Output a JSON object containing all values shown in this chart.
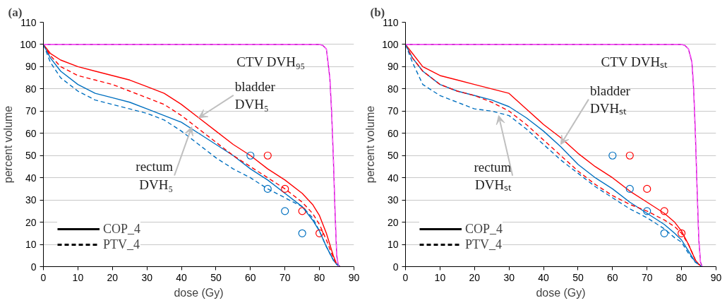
{
  "chart_data": [
    {
      "type": "line",
      "title": "(a)",
      "xlabel": "dose (Gy)",
      "ylabel": "percent volume",
      "x": [
        0,
        2,
        5,
        10,
        15,
        20,
        25,
        30,
        35,
        40,
        45,
        50,
        55,
        60,
        65,
        70,
        75,
        78,
        80,
        82,
        84,
        85,
        86
      ],
      "xlim": [
        0,
        90
      ],
      "xticks": [
        0,
        10,
        20,
        30,
        40,
        50,
        60,
        70,
        80,
        90
      ],
      "ylim": [
        0,
        110
      ],
      "yticks": [
        0,
        10,
        20,
        30,
        40,
        50,
        60,
        70,
        80,
        90,
        100,
        110
      ],
      "grid": "y",
      "legend": "bottom left",
      "series": [
        {
          "color": "#ff0000",
          "line_style": "solid",
          "values": [
            100,
            96,
            93,
            90,
            88,
            86,
            84,
            81,
            78,
            73,
            67,
            61,
            55,
            50,
            44,
            39,
            33,
            28,
            23,
            15,
            5,
            1,
            0
          ]
        },
        {
          "color": "#ff0000",
          "line_style": "dashed",
          "values": [
            100,
            95,
            90,
            86,
            84,
            82,
            79,
            76,
            73,
            68,
            62,
            56,
            50,
            45,
            40,
            35,
            29,
            24,
            19,
            12,
            4,
            1,
            0
          ]
        },
        {
          "color": "#0070c0",
          "line_style": "solid",
          "values": [
            100,
            94,
            88,
            82,
            78,
            76,
            74,
            71,
            68,
            65,
            60,
            55,
            50,
            44,
            39,
            33,
            27,
            21,
            16,
            9,
            3,
            1,
            0
          ]
        },
        {
          "color": "#0070c0",
          "line_style": "dashed",
          "values": [
            100,
            92,
            85,
            79,
            75,
            73,
            71,
            69,
            66,
            61,
            55,
            49,
            44,
            40,
            35,
            31,
            27,
            22,
            16,
            9,
            3,
            1,
            0
          ]
        },
        {
          "color": "#cc00cc",
          "line_style": "solid",
          "x": [
            0,
            80,
            81,
            82,
            83,
            83.5,
            84,
            84.5,
            85,
            85.5,
            86
          ],
          "values": [
            100,
            100,
            99.5,
            98,
            85,
            70,
            50,
            25,
            5,
            0,
            0
          ]
        },
        {
          "color": "#ff66ff",
          "line_style": "dashed",
          "x": [
            0,
            80,
            81,
            82,
            83,
            83.5,
            84,
            84.5,
            85,
            85.5,
            86
          ],
          "values": [
            100,
            100,
            99.5,
            98,
            86,
            72,
            52,
            27,
            6,
            0,
            0
          ]
        },
        {
          "type": "scatter",
          "marker": "circle",
          "color": "#0070c0",
          "x": [
            60,
            65,
            70,
            75
          ],
          "values": [
            50,
            35,
            25,
            15
          ]
        },
        {
          "type": "scatter",
          "marker": "circle",
          "color": "#ff0000",
          "x": [
            65,
            70,
            75,
            80
          ],
          "values": [
            50,
            35,
            25,
            15
          ]
        },
        {
          "name": "COP_4",
          "color": "#000000",
          "line_style": "solid",
          "values": [
            null,
            null,
            null,
            null,
            null,
            null,
            null,
            null,
            null,
            null,
            null,
            null,
            null,
            null,
            null,
            null,
            null,
            null,
            null,
            null,
            null,
            null,
            null
          ]
        },
        {
          "name": "PTV_4",
          "color": "#000000",
          "line_style": "dashed",
          "values": [
            null,
            null,
            null,
            null,
            null,
            null,
            null,
            null,
            null,
            null,
            null,
            null,
            null,
            null,
            null,
            null,
            null,
            null,
            null,
            null,
            null,
            null,
            null
          ]
        }
      ],
      "annotations": [
        "CTV DVH₉₅",
        {
          "text": "bladder\nDVH₅",
          "x": 45,
          "y": 67
        },
        {
          "text": "rectum\nDVH₅",
          "x": 43,
          "y": 63
        }
      ]
    },
    {
      "type": "line",
      "title": "(b)",
      "xlabel": "dose (Gy)",
      "ylabel": "percent volume",
      "x": [
        0,
        2,
        5,
        10,
        15,
        20,
        25,
        30,
        35,
        40,
        45,
        50,
        55,
        60,
        65,
        70,
        75,
        78,
        80,
        82,
        84,
        85,
        86
      ],
      "xlim": [
        0,
        90
      ],
      "xticks": [
        0,
        10,
        20,
        30,
        40,
        50,
        60,
        70,
        80,
        90
      ],
      "ylim": [
        0,
        110
      ],
      "yticks": [
        0,
        10,
        20,
        30,
        40,
        50,
        60,
        70,
        80,
        90,
        100,
        110
      ],
      "grid": "y",
      "legend": "bottom left",
      "series": [
        {
          "color": "#ff0000",
          "line_style": "solid",
          "values": [
            100,
            96,
            90,
            86,
            84,
            82,
            80,
            78,
            71,
            64,
            58,
            51,
            45,
            40,
            34,
            29,
            24,
            20,
            16,
            10,
            3,
            1,
            0
          ]
        },
        {
          "color": "#ff0000",
          "line_style": "dashed",
          "values": [
            100,
            94,
            88,
            82,
            79,
            77,
            74,
            70,
            64,
            57,
            50,
            43,
            37,
            32,
            28,
            25,
            21,
            18,
            15,
            10,
            3,
            1,
            0
          ]
        },
        {
          "color": "#0070c0",
          "line_style": "solid",
          "values": [
            100,
            94,
            88,
            82,
            79,
            77,
            75,
            72,
            67,
            61,
            54,
            46,
            40,
            35,
            29,
            24,
            19,
            15,
            12,
            7,
            2,
            1,
            0
          ]
        },
        {
          "color": "#0070c0",
          "line_style": "dashed",
          "values": [
            100,
            92,
            82,
            77,
            74,
            71,
            70,
            68,
            62,
            55,
            48,
            42,
            36,
            31,
            26,
            22,
            17,
            13,
            11,
            6,
            2,
            1,
            0
          ]
        },
        {
          "color": "#cc00cc",
          "line_style": "solid",
          "x": [
            0,
            80,
            81,
            82,
            83,
            83.5,
            84,
            84.5,
            85,
            85.5,
            86
          ],
          "values": [
            100,
            100,
            99.5,
            98,
            92,
            80,
            60,
            35,
            12,
            2,
            0
          ]
        },
        {
          "color": "#ff66ff",
          "line_style": "dashed",
          "x": [
            0,
            80,
            81,
            82,
            83,
            83.5,
            84,
            84.5,
            85,
            85.5,
            86
          ],
          "values": [
            100,
            100,
            99.5,
            98,
            93,
            82,
            62,
            37,
            13,
            2,
            0
          ]
        },
        {
          "type": "scatter",
          "marker": "circle",
          "color": "#0070c0",
          "x": [
            60,
            65,
            70,
            75
          ],
          "values": [
            50,
            35,
            25,
            15
          ]
        },
        {
          "type": "scatter",
          "marker": "circle",
          "color": "#ff0000",
          "x": [
            65,
            70,
            75,
            80
          ],
          "values": [
            50,
            35,
            25,
            15
          ]
        },
        {
          "name": "COP_4",
          "color": "#000000",
          "line_style": "solid",
          "values": [
            null,
            null,
            null,
            null,
            null,
            null,
            null,
            null,
            null,
            null,
            null,
            null,
            null,
            null,
            null,
            null,
            null,
            null,
            null,
            null,
            null,
            null,
            null
          ]
        },
        {
          "name": "PTV_4",
          "color": "#000000",
          "line_style": "dashed",
          "values": [
            null,
            null,
            null,
            null,
            null,
            null,
            null,
            null,
            null,
            null,
            null,
            null,
            null,
            null,
            null,
            null,
            null,
            null,
            null,
            null,
            null,
            null,
            null
          ]
        }
      ],
      "annotations": [
        "CTV DVHₛₜ",
        {
          "text": "bladder\nDVHₛₜ",
          "x": 45,
          "y": 55
        },
        {
          "text": "rectum\nDVHₛₜ",
          "x": 27,
          "y": 68
        }
      ]
    }
  ]
}
